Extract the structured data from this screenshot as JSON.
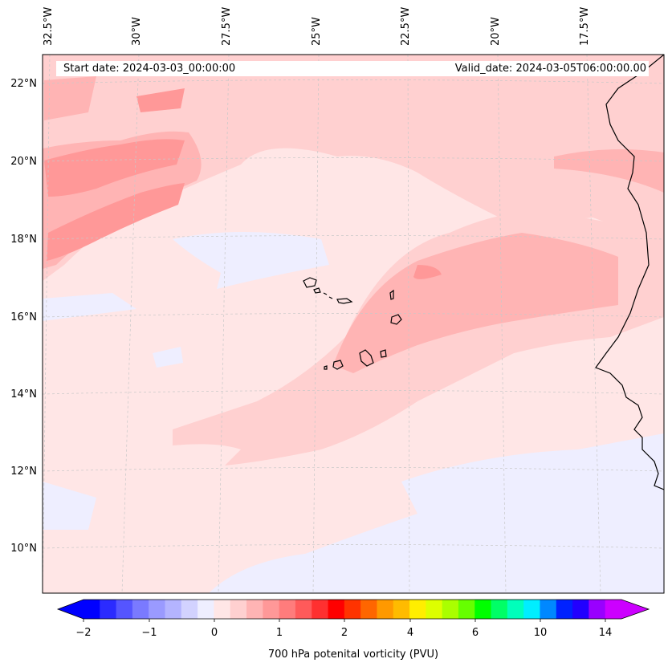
{
  "map": {
    "start_date": "Start date: 2024-03-03_00:00:00",
    "valid_date": "Valid_date: 2024-03-05T06:00:00.00",
    "longitude_labels": [
      "32.5°W",
      "30°W",
      "27.5°W",
      "25°W",
      "22.5°W",
      "20°W",
      "17.5°W"
    ],
    "latitude_labels": [
      "22°N",
      "20°N",
      "18°N",
      "16°N",
      "14°N",
      "12°N",
      "10°N"
    ],
    "variable": "700 hPa potential vorticity",
    "region": "Cape Verde Islands and West African coast"
  },
  "colorbar": {
    "title": "700 hPa potenital vorticity (PVU)",
    "tick_labels": [
      "−2",
      "−1",
      "0",
      "1",
      "2",
      "4",
      "6",
      "10",
      "14"
    ],
    "colors": [
      "#0000ff",
      "#2b2bff",
      "#5555ff",
      "#7a7aff",
      "#9a9aff",
      "#b4b4ff",
      "#d2d2ff",
      "#eeeeff",
      "#ffe6e6",
      "#ffd0d0",
      "#ffb4b4",
      "#ff9898",
      "#ff7c7c",
      "#ff5a5a",
      "#ff3030",
      "#ff0000",
      "#ff3300",
      "#ff6600",
      "#ff9900",
      "#ffbb00",
      "#ffee00",
      "#ddff00",
      "#aaff00",
      "#66ff00",
      "#00ff00",
      "#00ff66",
      "#00ffbb",
      "#00eeff",
      "#0088ff",
      "#0022ff",
      "#2200ff",
      "#9900ff",
      "#cc00ff"
    ],
    "under_color": "#0000ff",
    "over_color": "#cc00ff"
  }
}
